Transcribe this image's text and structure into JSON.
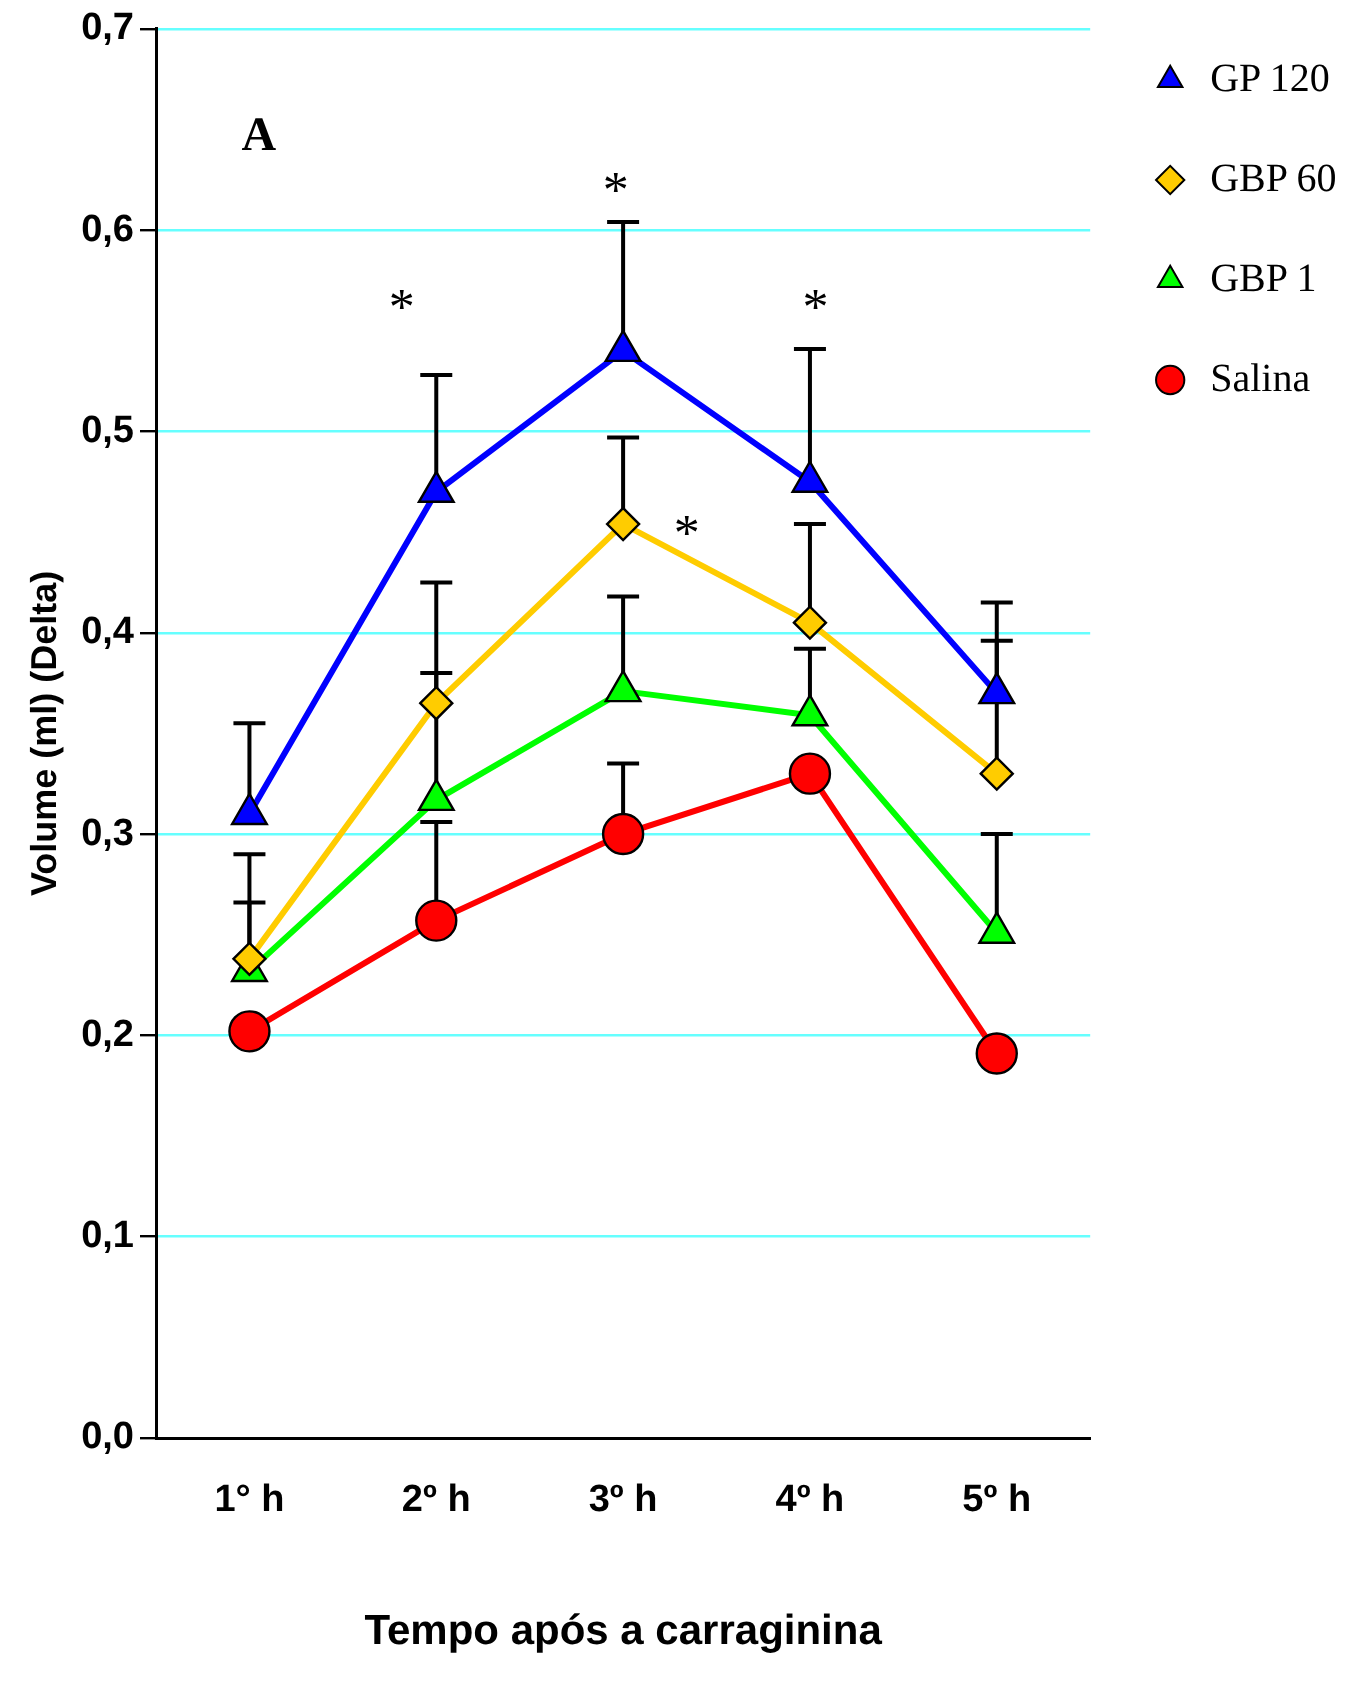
{
  "chart_data": {
    "type": "line",
    "xlabel": "Tempo após a carraginina",
    "ylabel": "Volume (ml) (Delta)",
    "categories": [
      "1° h",
      "2º h",
      "3º h",
      "4º h",
      "5º h"
    ],
    "series": [
      {
        "name": "GP 120",
        "color": "#0000ff",
        "marker": "triangle",
        "values": [
          0.31,
          0.47,
          0.54,
          0.475,
          0.37
        ],
        "errors": [
          [
            0.31,
            0.355
          ],
          [
            0.47,
            0.528
          ],
          [
            0.54,
            0.604
          ],
          [
            0.475,
            0.541
          ],
          [
            0.37,
            0.415
          ]
        ]
      },
      {
        "name": "GBP 60",
        "color": "#ffcc00",
        "marker": "diamond",
        "values": [
          0.238,
          0.365,
          0.454,
          0.405,
          0.33
        ],
        "errors": [
          [
            0.238,
            0.29
          ],
          [
            0.365,
            0.425
          ],
          [
            0.454,
            0.497
          ],
          [
            0.405,
            0.454
          ],
          [
            0.33,
            0.396
          ]
        ]
      },
      {
        "name": "GBP 1",
        "color": "#00ff00",
        "marker": "triangle",
        "values": [
          0.232,
          0.317,
          0.371,
          0.359,
          0.251
        ],
        "errors": [
          [
            0.232,
            0.266
          ],
          [
            0.317,
            0.38
          ],
          [
            0.371,
            0.418
          ],
          [
            0.359,
            0.392
          ],
          [
            0.251,
            0.3
          ]
        ]
      },
      {
        "name": "Salina",
        "color": "#ff0000",
        "marker": "circle",
        "values": [
          0.202,
          0.257,
          0.3,
          0.33,
          0.191
        ],
        "errors": [
          null,
          [
            0.257,
            0.306
          ],
          [
            0.3,
            0.335
          ],
          null,
          null
        ]
      }
    ],
    "ylim": [
      0,
      0.7
    ],
    "yticks": [
      {
        "value": 0,
        "label": "0,0"
      },
      {
        "value": 0.1,
        "label": "0,1"
      },
      {
        "value": 0.2,
        "label": "0,2"
      },
      {
        "value": 0.3,
        "label": "0,3"
      },
      {
        "value": 0.4,
        "label": "0,4"
      },
      {
        "value": 0.5,
        "label": "0,5"
      },
      {
        "value": 0.6,
        "label": "0,6"
      },
      {
        "value": 0.7,
        "label": "0,7"
      }
    ],
    "grid": "y",
    "legend": "top right",
    "annotations": [
      "A",
      "*",
      "*",
      "*",
      "*"
    ]
  }
}
